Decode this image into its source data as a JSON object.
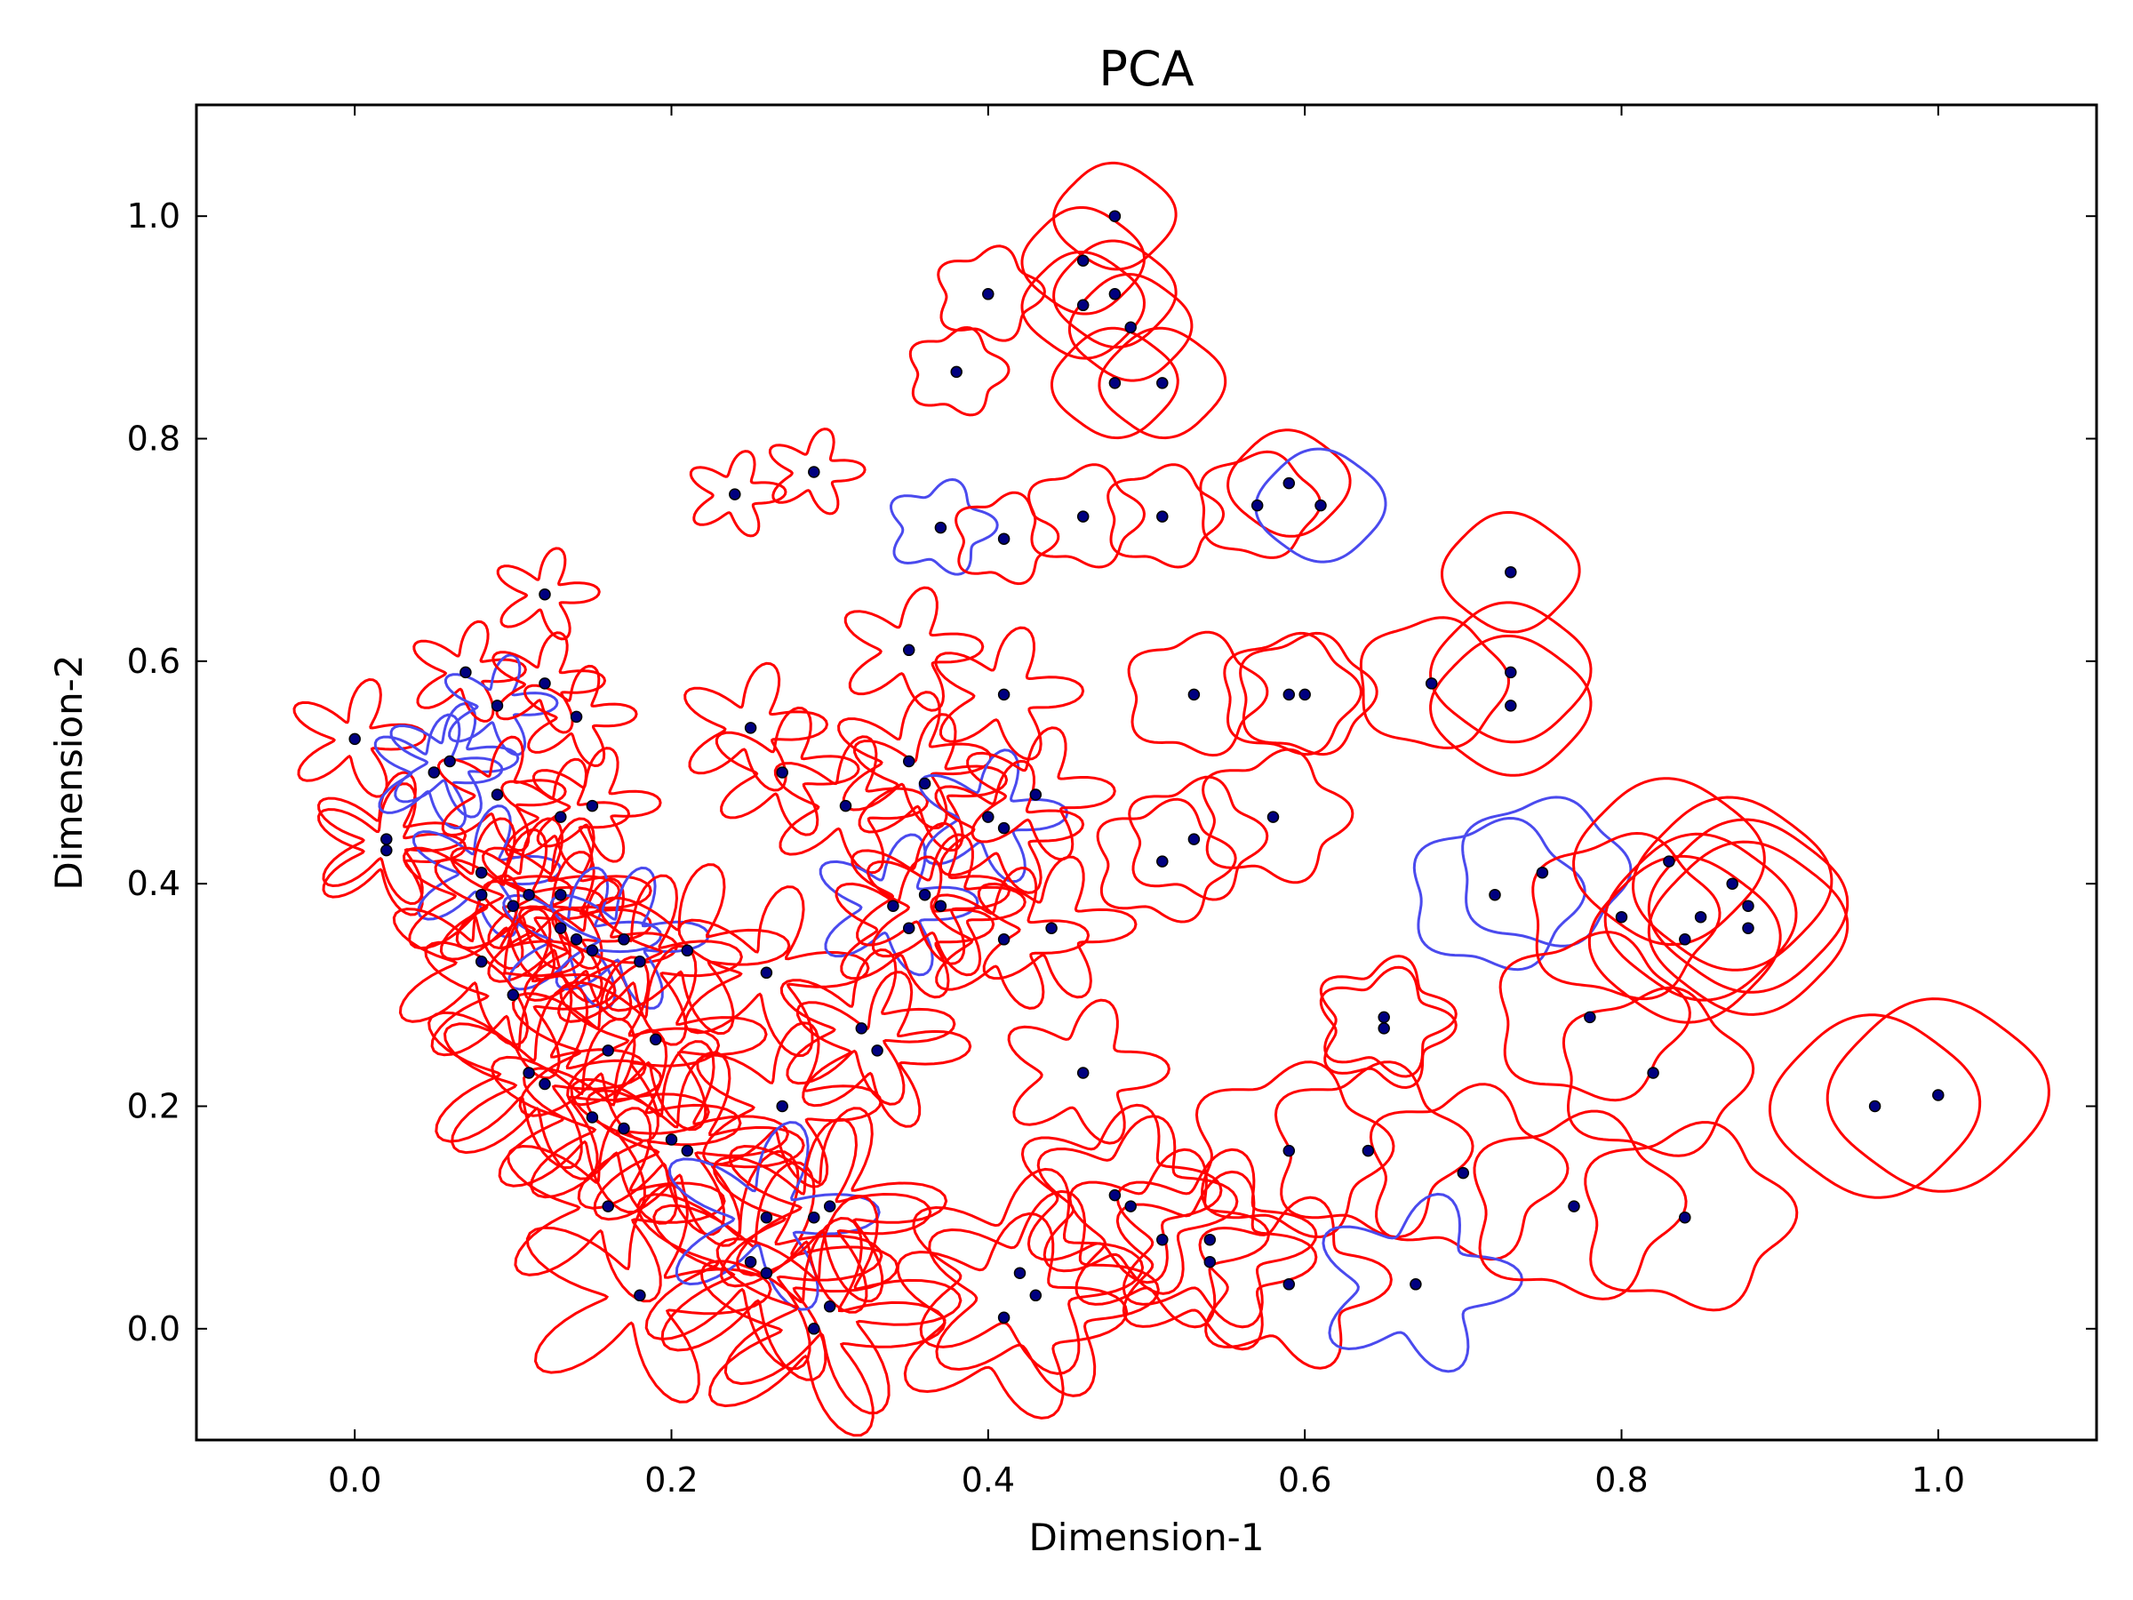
{
  "chart_data": {
    "type": "scatter",
    "title": "PCA",
    "xlabel": "Dimension-1",
    "ylabel": "Dimension-2",
    "xlim": [
      -0.1,
      1.1
    ],
    "ylim": [
      -0.1,
      1.1
    ],
    "xticks": [
      0.0,
      0.2,
      0.4,
      0.6,
      0.8,
      1.0
    ],
    "yticks": [
      0.0,
      0.2,
      0.4,
      0.6,
      0.8,
      1.0
    ],
    "xtick_labels": [
      "0.0",
      "0.2",
      "0.4",
      "0.6",
      "0.8",
      "1.0"
    ],
    "ytick_labels": [
      "0.0",
      "0.2",
      "0.4",
      "0.6",
      "0.8",
      "1.0"
    ],
    "grid": false,
    "legend": "none",
    "marker_color": "#000080",
    "glyph_colors": {
      "red": "#ff0000",
      "blue": "#4a4aee"
    },
    "points": [
      {
        "x": 0.0,
        "y": 0.53,
        "c": "red",
        "r": 0.025,
        "k": 5,
        "a": 0.55
      },
      {
        "x": 0.02,
        "y": 0.44,
        "c": "red",
        "r": 0.028,
        "k": 5,
        "a": 0.55
      },
      {
        "x": 0.02,
        "y": 0.43,
        "c": "red",
        "r": 0.028,
        "k": 5,
        "a": 0.55
      },
      {
        "x": 0.05,
        "y": 0.5,
        "c": "blue",
        "r": 0.025,
        "k": 5,
        "a": 0.5
      },
      {
        "x": 0.06,
        "y": 0.51,
        "c": "blue",
        "r": 0.025,
        "k": 5,
        "a": 0.5
      },
      {
        "x": 0.07,
        "y": 0.59,
        "c": "red",
        "r": 0.022,
        "k": 5,
        "a": 0.5
      },
      {
        "x": 0.09,
        "y": 0.56,
        "c": "blue",
        "r": 0.022,
        "k": 5,
        "a": 0.5
      },
      {
        "x": 0.12,
        "y": 0.58,
        "c": "red",
        "r": 0.022,
        "k": 5,
        "a": 0.5
      },
      {
        "x": 0.14,
        "y": 0.55,
        "c": "red",
        "r": 0.022,
        "k": 5,
        "a": 0.5
      },
      {
        "x": 0.12,
        "y": 0.66,
        "c": "red",
        "r": 0.02,
        "k": 5,
        "a": 0.5
      },
      {
        "x": 0.09,
        "y": 0.48,
        "c": "red",
        "r": 0.025,
        "k": 5,
        "a": 0.5
      },
      {
        "x": 0.13,
        "y": 0.46,
        "c": "red",
        "r": 0.025,
        "k": 5,
        "a": 0.5
      },
      {
        "x": 0.15,
        "y": 0.47,
        "c": "red",
        "r": 0.025,
        "k": 5,
        "a": 0.5
      },
      {
        "x": 0.08,
        "y": 0.41,
        "c": "blue",
        "r": 0.028,
        "k": 5,
        "a": 0.55
      },
      {
        "x": 0.08,
        "y": 0.39,
        "c": "red",
        "r": 0.032,
        "k": 5,
        "a": 0.55
      },
      {
        "x": 0.1,
        "y": 0.38,
        "c": "red",
        "r": 0.032,
        "k": 5,
        "a": 0.55
      },
      {
        "x": 0.11,
        "y": 0.39,
        "c": "red",
        "r": 0.032,
        "k": 5,
        "a": 0.55
      },
      {
        "x": 0.13,
        "y": 0.39,
        "c": "red",
        "r": 0.032,
        "k": 5,
        "a": 0.55
      },
      {
        "x": 0.13,
        "y": 0.36,
        "c": "red",
        "r": 0.032,
        "k": 5,
        "a": 0.55
      },
      {
        "x": 0.14,
        "y": 0.35,
        "c": "blue",
        "r": 0.03,
        "k": 5,
        "a": 0.55
      },
      {
        "x": 0.15,
        "y": 0.34,
        "c": "red",
        "r": 0.03,
        "k": 5,
        "a": 0.55
      },
      {
        "x": 0.17,
        "y": 0.35,
        "c": "blue",
        "r": 0.03,
        "k": 5,
        "a": 0.55
      },
      {
        "x": 0.08,
        "y": 0.33,
        "c": "red",
        "r": 0.035,
        "k": 5,
        "a": 0.6
      },
      {
        "x": 0.1,
        "y": 0.3,
        "c": "red",
        "r": 0.035,
        "k": 5,
        "a": 0.6
      },
      {
        "x": 0.18,
        "y": 0.33,
        "c": "red",
        "r": 0.035,
        "k": 5,
        "a": 0.6
      },
      {
        "x": 0.21,
        "y": 0.34,
        "c": "red",
        "r": 0.035,
        "k": 5,
        "a": 0.6
      },
      {
        "x": 0.26,
        "y": 0.32,
        "c": "red",
        "r": 0.035,
        "k": 5,
        "a": 0.6
      },
      {
        "x": 0.16,
        "y": 0.25,
        "c": "red",
        "r": 0.038,
        "k": 5,
        "a": 0.6
      },
      {
        "x": 0.19,
        "y": 0.26,
        "c": "red",
        "r": 0.038,
        "k": 5,
        "a": 0.6
      },
      {
        "x": 0.11,
        "y": 0.23,
        "c": "red",
        "r": 0.04,
        "k": 5,
        "a": 0.6
      },
      {
        "x": 0.12,
        "y": 0.22,
        "c": "red",
        "r": 0.04,
        "k": 5,
        "a": 0.6
      },
      {
        "x": 0.15,
        "y": 0.19,
        "c": "red",
        "r": 0.04,
        "k": 5,
        "a": 0.6
      },
      {
        "x": 0.17,
        "y": 0.18,
        "c": "red",
        "r": 0.04,
        "k": 5,
        "a": 0.6
      },
      {
        "x": 0.2,
        "y": 0.17,
        "c": "red",
        "r": 0.04,
        "k": 5,
        "a": 0.6
      },
      {
        "x": 0.21,
        "y": 0.16,
        "c": "red",
        "r": 0.04,
        "k": 5,
        "a": 0.6
      },
      {
        "x": 0.27,
        "y": 0.2,
        "c": "red",
        "r": 0.035,
        "k": 5,
        "a": 0.55
      },
      {
        "x": 0.16,
        "y": 0.11,
        "c": "red",
        "r": 0.04,
        "k": 5,
        "a": 0.6
      },
      {
        "x": 0.18,
        "y": 0.03,
        "c": "red",
        "r": 0.045,
        "k": 5,
        "a": 0.6
      },
      {
        "x": 0.25,
        "y": 0.06,
        "c": "red",
        "r": 0.045,
        "k": 5,
        "a": 0.6
      },
      {
        "x": 0.26,
        "y": 0.05,
        "c": "red",
        "r": 0.045,
        "k": 5,
        "a": 0.6
      },
      {
        "x": 0.26,
        "y": 0.1,
        "c": "blue",
        "r": 0.04,
        "k": 5,
        "a": 0.55
      },
      {
        "x": 0.29,
        "y": 0.1,
        "c": "red",
        "r": 0.04,
        "k": 5,
        "a": 0.6
      },
      {
        "x": 0.3,
        "y": 0.11,
        "c": "red",
        "r": 0.04,
        "k": 5,
        "a": 0.6
      },
      {
        "x": 0.29,
        "y": 0.0,
        "c": "red",
        "r": 0.045,
        "k": 5,
        "a": 0.6
      },
      {
        "x": 0.3,
        "y": 0.02,
        "c": "red",
        "r": 0.045,
        "k": 5,
        "a": 0.6
      },
      {
        "x": 0.32,
        "y": 0.27,
        "c": "red",
        "r": 0.033,
        "k": 5,
        "a": 0.55
      },
      {
        "x": 0.33,
        "y": 0.25,
        "c": "red",
        "r": 0.033,
        "k": 5,
        "a": 0.55
      },
      {
        "x": 0.24,
        "y": 0.75,
        "c": "red",
        "r": 0.02,
        "k": 5,
        "a": 0.4
      },
      {
        "x": 0.29,
        "y": 0.77,
        "c": "red",
        "r": 0.02,
        "k": 5,
        "a": 0.4
      },
      {
        "x": 0.25,
        "y": 0.54,
        "c": "red",
        "r": 0.028,
        "k": 5,
        "a": 0.5
      },
      {
        "x": 0.27,
        "y": 0.5,
        "c": "red",
        "r": 0.028,
        "k": 5,
        "a": 0.5
      },
      {
        "x": 0.31,
        "y": 0.47,
        "c": "red",
        "r": 0.03,
        "k": 5,
        "a": 0.5
      },
      {
        "x": 0.35,
        "y": 0.61,
        "c": "red",
        "r": 0.028,
        "k": 5,
        "a": 0.45
      },
      {
        "x": 0.35,
        "y": 0.51,
        "c": "red",
        "r": 0.03,
        "k": 5,
        "a": 0.5
      },
      {
        "x": 0.36,
        "y": 0.49,
        "c": "red",
        "r": 0.03,
        "k": 5,
        "a": 0.5
      },
      {
        "x": 0.41,
        "y": 0.57,
        "c": "red",
        "r": 0.03,
        "k": 5,
        "a": 0.45
      },
      {
        "x": 0.4,
        "y": 0.46,
        "c": "blue",
        "r": 0.03,
        "k": 5,
        "a": 0.45
      },
      {
        "x": 0.41,
        "y": 0.45,
        "c": "red",
        "r": 0.03,
        "k": 5,
        "a": 0.45
      },
      {
        "x": 0.43,
        "y": 0.48,
        "c": "red",
        "r": 0.03,
        "k": 5,
        "a": 0.45
      },
      {
        "x": 0.34,
        "y": 0.38,
        "c": "blue",
        "r": 0.032,
        "k": 5,
        "a": 0.45
      },
      {
        "x": 0.36,
        "y": 0.39,
        "c": "red",
        "r": 0.032,
        "k": 5,
        "a": 0.45
      },
      {
        "x": 0.37,
        "y": 0.38,
        "c": "red",
        "r": 0.032,
        "k": 5,
        "a": 0.45
      },
      {
        "x": 0.35,
        "y": 0.36,
        "c": "red",
        "r": 0.032,
        "k": 5,
        "a": 0.45
      },
      {
        "x": 0.41,
        "y": 0.35,
        "c": "red",
        "r": 0.032,
        "k": 5,
        "a": 0.45
      },
      {
        "x": 0.44,
        "y": 0.36,
        "c": "red",
        "r": 0.032,
        "k": 5,
        "a": 0.45
      },
      {
        "x": 0.38,
        "y": 0.86,
        "c": "red",
        "r": 0.025,
        "k": 5,
        "a": 0.15
      },
      {
        "x": 0.4,
        "y": 0.93,
        "c": "red",
        "r": 0.027,
        "k": 5,
        "a": 0.15
      },
      {
        "x": 0.46,
        "y": 0.96,
        "c": "red",
        "r": 0.032,
        "k": 4,
        "a": 0.05
      },
      {
        "x": 0.48,
        "y": 1.0,
        "c": "red",
        "r": 0.032,
        "k": 4,
        "a": 0.05
      },
      {
        "x": 0.46,
        "y": 0.92,
        "c": "red",
        "r": 0.032,
        "k": 4,
        "a": 0.05
      },
      {
        "x": 0.48,
        "y": 0.93,
        "c": "red",
        "r": 0.032,
        "k": 4,
        "a": 0.05
      },
      {
        "x": 0.49,
        "y": 0.9,
        "c": "red",
        "r": 0.032,
        "k": 4,
        "a": 0.05
      },
      {
        "x": 0.48,
        "y": 0.85,
        "c": "red",
        "r": 0.033,
        "k": 4,
        "a": 0.05
      },
      {
        "x": 0.51,
        "y": 0.85,
        "c": "red",
        "r": 0.033,
        "k": 4,
        "a": 0.05
      },
      {
        "x": 0.37,
        "y": 0.72,
        "c": "blue",
        "r": 0.026,
        "k": 5,
        "a": 0.2
      },
      {
        "x": 0.41,
        "y": 0.71,
        "c": "red",
        "r": 0.026,
        "k": 5,
        "a": 0.15
      },
      {
        "x": 0.46,
        "y": 0.73,
        "c": "red",
        "r": 0.03,
        "k": 5,
        "a": 0.12
      },
      {
        "x": 0.51,
        "y": 0.73,
        "c": "red",
        "r": 0.03,
        "k": 5,
        "a": 0.12
      },
      {
        "x": 0.57,
        "y": 0.74,
        "c": "red",
        "r": 0.032,
        "k": 5,
        "a": 0.08
      },
      {
        "x": 0.59,
        "y": 0.76,
        "c": "red",
        "r": 0.032,
        "k": 4,
        "a": 0.05
      },
      {
        "x": 0.61,
        "y": 0.74,
        "c": "blue",
        "r": 0.034,
        "k": 4,
        "a": 0.05
      },
      {
        "x": 0.73,
        "y": 0.68,
        "c": "red",
        "r": 0.036,
        "k": 4,
        "a": 0.05
      },
      {
        "x": 0.53,
        "y": 0.57,
        "c": "red",
        "r": 0.036,
        "k": 5,
        "a": 0.12
      },
      {
        "x": 0.59,
        "y": 0.57,
        "c": "red",
        "r": 0.036,
        "k": 5,
        "a": 0.1
      },
      {
        "x": 0.6,
        "y": 0.57,
        "c": "red",
        "r": 0.036,
        "k": 5,
        "a": 0.1
      },
      {
        "x": 0.68,
        "y": 0.58,
        "c": "red",
        "r": 0.04,
        "k": 5,
        "a": 0.06
      },
      {
        "x": 0.73,
        "y": 0.59,
        "c": "red",
        "r": 0.042,
        "k": 4,
        "a": 0.05
      },
      {
        "x": 0.73,
        "y": 0.56,
        "c": "red",
        "r": 0.042,
        "k": 4,
        "a": 0.05
      },
      {
        "x": 0.51,
        "y": 0.42,
        "c": "red",
        "r": 0.035,
        "k": 5,
        "a": 0.15
      },
      {
        "x": 0.53,
        "y": 0.44,
        "c": "red",
        "r": 0.035,
        "k": 5,
        "a": 0.15
      },
      {
        "x": 0.58,
        "y": 0.46,
        "c": "red",
        "r": 0.038,
        "k": 5,
        "a": 0.15
      },
      {
        "x": 0.72,
        "y": 0.39,
        "c": "blue",
        "r": 0.045,
        "k": 5,
        "a": 0.1
      },
      {
        "x": 0.75,
        "y": 0.41,
        "c": "blue",
        "r": 0.045,
        "k": 5,
        "a": 0.08
      },
      {
        "x": 0.8,
        "y": 0.37,
        "c": "red",
        "r": 0.05,
        "k": 5,
        "a": 0.08
      },
      {
        "x": 0.83,
        "y": 0.42,
        "c": "red",
        "r": 0.05,
        "k": 4,
        "a": 0.05
      },
      {
        "x": 0.84,
        "y": 0.35,
        "c": "red",
        "r": 0.05,
        "k": 4,
        "a": 0.05
      },
      {
        "x": 0.85,
        "y": 0.37,
        "c": "red",
        "r": 0.05,
        "k": 4,
        "a": 0.05
      },
      {
        "x": 0.87,
        "y": 0.4,
        "c": "red",
        "r": 0.052,
        "k": 4,
        "a": 0.05
      },
      {
        "x": 0.88,
        "y": 0.38,
        "c": "red",
        "r": 0.052,
        "k": 4,
        "a": 0.05
      },
      {
        "x": 0.88,
        "y": 0.36,
        "c": "red",
        "r": 0.052,
        "k": 4,
        "a": 0.05
      },
      {
        "x": 0.65,
        "y": 0.27,
        "c": "red",
        "r": 0.033,
        "k": 5,
        "a": 0.2
      },
      {
        "x": 0.65,
        "y": 0.28,
        "c": "red",
        "r": 0.033,
        "k": 5,
        "a": 0.2
      },
      {
        "x": 0.46,
        "y": 0.23,
        "c": "red",
        "r": 0.035,
        "k": 5,
        "a": 0.35
      },
      {
        "x": 0.78,
        "y": 0.28,
        "c": "red",
        "r": 0.05,
        "k": 5,
        "a": 0.1
      },
      {
        "x": 0.82,
        "y": 0.23,
        "c": "red",
        "r": 0.05,
        "k": 5,
        "a": 0.1
      },
      {
        "x": 0.96,
        "y": 0.2,
        "c": "red",
        "r": 0.055,
        "k": 4,
        "a": 0.05
      },
      {
        "x": 1.0,
        "y": 0.21,
        "c": "red",
        "r": 0.058,
        "k": 4,
        "a": 0.05
      },
      {
        "x": 0.48,
        "y": 0.12,
        "c": "red",
        "r": 0.045,
        "k": 5,
        "a": 0.3
      },
      {
        "x": 0.49,
        "y": 0.11,
        "c": "red",
        "r": 0.045,
        "k": 5,
        "a": 0.3
      },
      {
        "x": 0.51,
        "y": 0.08,
        "c": "red",
        "r": 0.045,
        "k": 5,
        "a": 0.3
      },
      {
        "x": 0.54,
        "y": 0.08,
        "c": "red",
        "r": 0.045,
        "k": 5,
        "a": 0.3
      },
      {
        "x": 0.54,
        "y": 0.06,
        "c": "red",
        "r": 0.045,
        "k": 5,
        "a": 0.3
      },
      {
        "x": 0.59,
        "y": 0.04,
        "c": "red",
        "r": 0.045,
        "k": 5,
        "a": 0.25
      },
      {
        "x": 0.59,
        "y": 0.16,
        "c": "red",
        "r": 0.05,
        "k": 5,
        "a": 0.15
      },
      {
        "x": 0.64,
        "y": 0.16,
        "c": "red",
        "r": 0.05,
        "k": 5,
        "a": 0.15
      },
      {
        "x": 0.7,
        "y": 0.14,
        "c": "red",
        "r": 0.05,
        "k": 5,
        "a": 0.15
      },
      {
        "x": 0.67,
        "y": 0.04,
        "c": "blue",
        "r": 0.045,
        "k": 5,
        "a": 0.3
      },
      {
        "x": 0.77,
        "y": 0.11,
        "c": "red",
        "r": 0.055,
        "k": 5,
        "a": 0.12
      },
      {
        "x": 0.84,
        "y": 0.1,
        "c": "red",
        "r": 0.055,
        "k": 5,
        "a": 0.12
      },
      {
        "x": 0.42,
        "y": 0.05,
        "c": "red",
        "r": 0.05,
        "k": 5,
        "a": 0.35
      },
      {
        "x": 0.43,
        "y": 0.03,
        "c": "red",
        "r": 0.05,
        "k": 5,
        "a": 0.35
      },
      {
        "x": 0.41,
        "y": 0.01,
        "c": "red",
        "r": 0.05,
        "k": 5,
        "a": 0.35
      }
    ]
  }
}
